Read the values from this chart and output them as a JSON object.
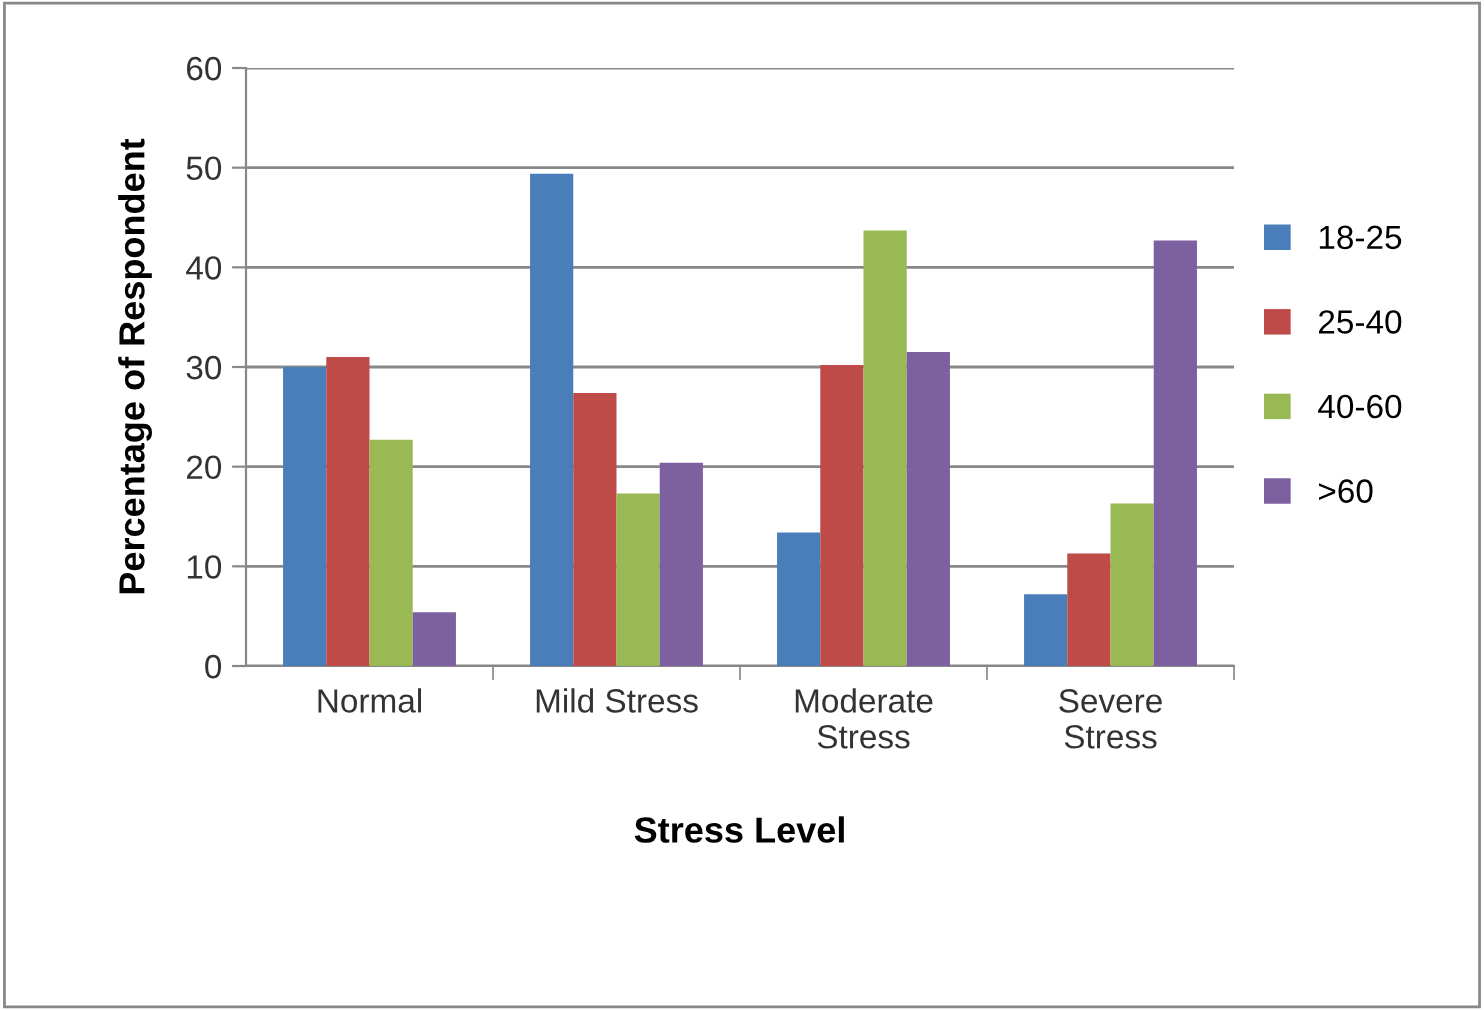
{
  "chart_data": {
    "type": "bar",
    "xlabel": "Stress Level",
    "ylabel": "Percentage of Respondent",
    "categories": [
      "Normal",
      "Mild Stress",
      "Moderate\nStress",
      "Severe\nStress"
    ],
    "series": [
      {
        "name": "18-25",
        "color": "#4a7ebb",
        "values": [
          30,
          49.4,
          13.4,
          7.2
        ]
      },
      {
        "name": "25-40",
        "color": "#be4b48",
        "values": [
          31,
          27.4,
          30.2,
          11.3
        ]
      },
      {
        "name": "40-60",
        "color": "#98b954",
        "values": [
          22.7,
          17.3,
          43.7,
          16.3
        ]
      },
      {
        "name": ">60",
        "color": "#7d60a0",
        "values": [
          5.4,
          20.4,
          31.5,
          42.7
        ]
      }
    ],
    "ylim": [
      0,
      60
    ],
    "yticks": [
      0,
      10,
      20,
      30,
      40,
      50,
      60
    ],
    "grid": "y",
    "legend": "right"
  }
}
